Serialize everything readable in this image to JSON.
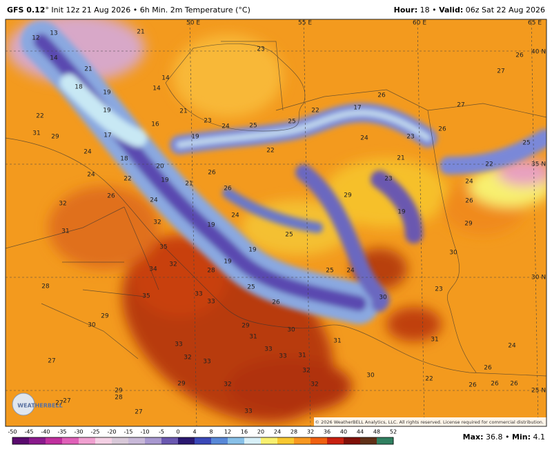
{
  "header": {
    "left_bold": "GFS 0.12",
    "left_rest": "° Init 12z 21 Aug 2026 • 6h Min. 2m Temperature (°C)",
    "right_bold1": "Hour:",
    "right_1": " 18 • ",
    "right_bold2": "Valid:",
    "right_2": " 06z Sat 22 Aug 2026"
  },
  "map": {
    "grid_labels": [
      "50 E",
      "55 E",
      "60 E",
      "65 E",
      "40 N",
      "35 N",
      "30 N",
      "25 N"
    ],
    "values": [
      12,
      13,
      14,
      21,
      21,
      14,
      14,
      18,
      19,
      19,
      22,
      16,
      21,
      23,
      26,
      27,
      27,
      26,
      17,
      22,
      25,
      24,
      25,
      23,
      31,
      29,
      17,
      24,
      19,
      22,
      24,
      23,
      26,
      25,
      21,
      22,
      18,
      20,
      26,
      24,
      22,
      19,
      21,
      26,
      23,
      24,
      26,
      29,
      26,
      24,
      32,
      32,
      19,
      24,
      19,
      29,
      31,
      25,
      35,
      19,
      30,
      32,
      19,
      34,
      28,
      25,
      24,
      28,
      25,
      23,
      35,
      33,
      33,
      26,
      30,
      29,
      30,
      29,
      30,
      31,
      31,
      31,
      24,
      33,
      33,
      33,
      31,
      27,
      32,
      33,
      32,
      26,
      30,
      29,
      32,
      32,
      29,
      28,
      27,
      27,
      33,
      27,
      26,
      26,
      26,
      22
    ],
    "logo": "WEATHERBELL",
    "copyright": "© 2026 WeatherBELL Analytics, LLC. All rights reserved. License required for commercial distribution."
  },
  "colorbar": {
    "ticks": [
      -50,
      -45,
      -40,
      -35,
      -30,
      -25,
      -20,
      -15,
      -10,
      -5,
      0,
      4,
      8,
      12,
      16,
      20,
      24,
      28,
      32,
      36,
      40,
      44,
      48,
      52
    ],
    "colors": [
      "#5a0a6e",
      "#8a1a8c",
      "#c0309e",
      "#e060b8",
      "#f0a0d0",
      "#f4d0e4",
      "#d8c8d8",
      "#c8b8d8",
      "#a898d0",
      "#6a58b0",
      "#2a1870",
      "#3a48b8",
      "#5888d8",
      "#88c0e8",
      "#d8f0f8",
      "#f8f070",
      "#f8c830",
      "#f89820",
      "#f06010",
      "#c82010",
      "#801008",
      "#603018",
      "#308060"
    ]
  },
  "footer": {
    "max_label": "Max:",
    "max": 36.8,
    "sep": "•",
    "min_label": "Min:",
    "min": 4.1
  }
}
